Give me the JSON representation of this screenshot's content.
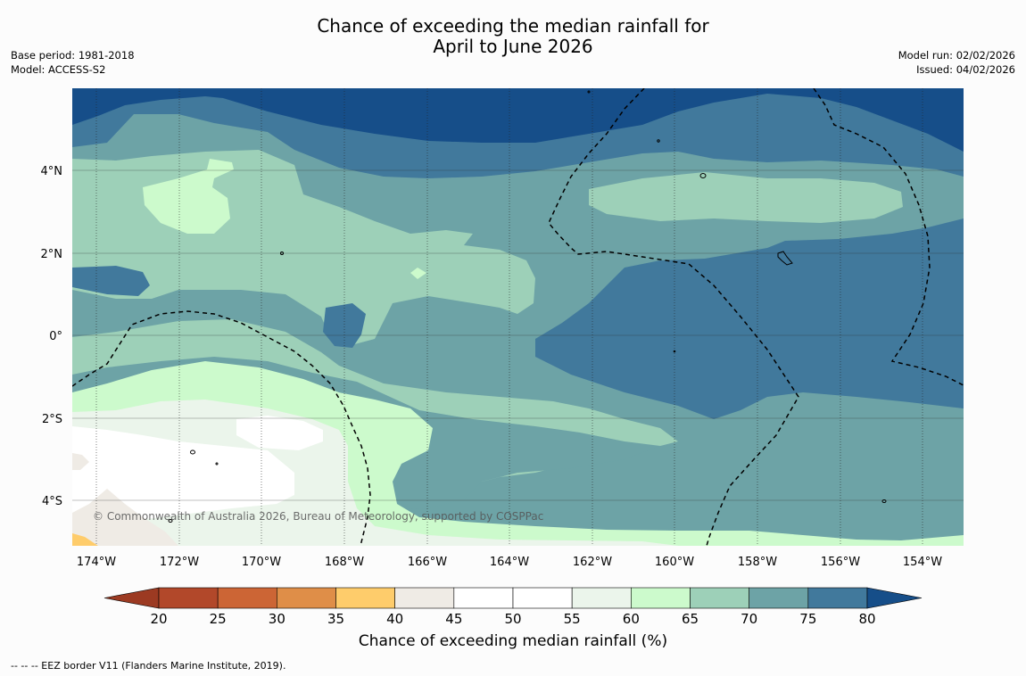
{
  "title": {
    "line1": "Chance of exceeding the median rainfall for",
    "line2": "April to June 2026"
  },
  "meta_left": {
    "base_period": "Base period: 1981-2018",
    "model": "Model: ACCESS-S2"
  },
  "meta_right": {
    "model_run": "Model run: 02/02/2026",
    "issued": "Issued: 04/02/2026"
  },
  "map": {
    "copyright": "© Commonwealth of Australia 2026, Bureau of Meteorology, supported by COSPPac",
    "lon_labels": [
      "174°W",
      "172°W",
      "170°W",
      "168°W",
      "166°W",
      "164°W",
      "162°W",
      "160°W",
      "158°W",
      "156°W",
      "154°W"
    ],
    "lat_labels": [
      "4°N",
      "2°N",
      "0°",
      "2°S",
      "4°S"
    ]
  },
  "colorbar": {
    "title": "Chance of exceeding median rainfall (%)",
    "ticks": [
      "20",
      "25",
      "30",
      "35",
      "40",
      "45",
      "50",
      "55",
      "60",
      "65",
      "70",
      "75",
      "80"
    ],
    "colors": [
      "#b2482a",
      "#cc6535",
      "#df8e48",
      "#fecc6b",
      "#efebe5",
      "#ffffff",
      "#ffffff",
      "#ebf5eb",
      "#ccfacc",
      "#9dd0b8",
      "#6da3a6",
      "#41799c",
      "#164e89"
    ],
    "under_color": "#9c3a22",
    "over_color": "#164e89"
  },
  "footnote": "--  --  -- EEZ border V11 (Flanders Marine Institute, 2019).",
  "colors": {
    "c80": "#164e89",
    "c75": "#41799c",
    "c70": "#6da3a6",
    "c65": "#9dd0b8",
    "c60": "#ccfacc",
    "c55": "#ebf5eb",
    "c45": "#ffffff",
    "c40": "#efebe5",
    "c35": "#fecc6b"
  }
}
